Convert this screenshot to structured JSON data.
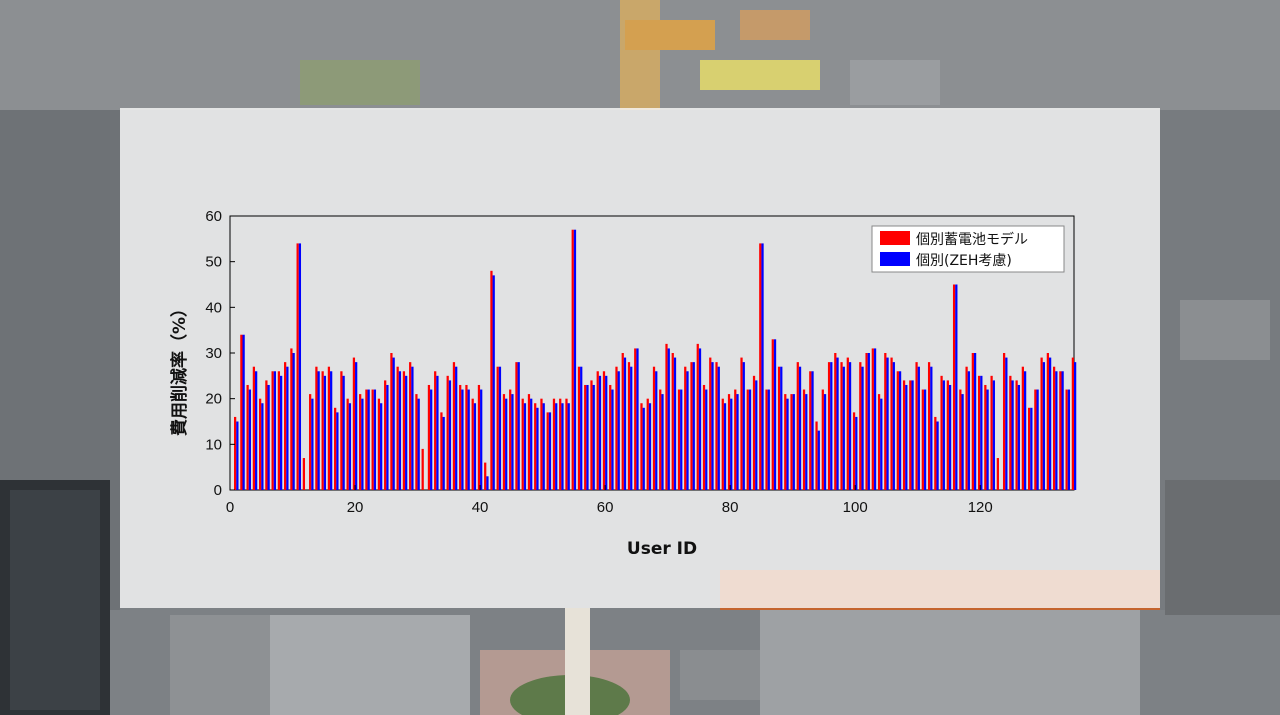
{
  "chart_data": {
    "type": "bar",
    "xlabel": "User ID",
    "ylabel": "費用削減率（%）",
    "ylim": [
      0,
      60
    ],
    "xlim": [
      0,
      135
    ],
    "y_ticks": [
      "0",
      "10",
      "20",
      "30",
      "40",
      "50",
      "60"
    ],
    "x_ticks": [
      "0",
      "20",
      "40",
      "60",
      "80",
      "100",
      "120"
    ],
    "legend_position": "top-right",
    "grid": false,
    "series": [
      {
        "name": "個別蓄電池モデル",
        "color": "#ff0000",
        "values": [
          16,
          34,
          23,
          27,
          20,
          24,
          26,
          26,
          28,
          31,
          54,
          7,
          21,
          27,
          26,
          27,
          18,
          26,
          20,
          29,
          21,
          22,
          22,
          20,
          24,
          30,
          27,
          26,
          28,
          21,
          9,
          23,
          26,
          17,
          25,
          28,
          23,
          23,
          20,
          23,
          6,
          48,
          27,
          21,
          22,
          28,
          20,
          21,
          19,
          20,
          17,
          20,
          20,
          20,
          57,
          27,
          23,
          24,
          26,
          26,
          23,
          27,
          30,
          28,
          31,
          19,
          20,
          27,
          22,
          32,
          30,
          22,
          27,
          28,
          32,
          23,
          29,
          28,
          20,
          21,
          22,
          29,
          22,
          25,
          54,
          22,
          33,
          27,
          21,
          21,
          28,
          22,
          26,
          15,
          22,
          28,
          30,
          28,
          29,
          17,
          28,
          30,
          31,
          21,
          30,
          29,
          26,
          24,
          24,
          28,
          22,
          28,
          16,
          25,
          24,
          45,
          22,
          27,
          30,
          25,
          23,
          25,
          7,
          30,
          25,
          24,
          27,
          18,
          22,
          29,
          30,
          27,
          26,
          22,
          29
        ]
      },
      {
        "name": "個別(ZEH考慮)",
        "color": "#0000ff",
        "values": [
          15,
          34,
          22,
          26,
          19,
          23,
          26,
          25,
          27,
          30,
          54,
          0,
          20,
          26,
          25,
          26,
          17,
          25,
          19,
          28,
          20,
          22,
          22,
          19,
          23,
          29,
          26,
          25,
          27,
          20,
          0,
          22,
          25,
          16,
          24,
          27,
          22,
          22,
          19,
          22,
          3,
          47,
          27,
          20,
          21,
          28,
          19,
          20,
          18,
          19,
          17,
          19,
          19,
          19,
          57,
          27,
          23,
          23,
          25,
          25,
          22,
          26,
          29,
          27,
          31,
          18,
          19,
          26,
          21,
          31,
          29,
          22,
          26,
          28,
          31,
          22,
          28,
          27,
          19,
          20,
          21,
          28,
          22,
          24,
          54,
          22,
          33,
          27,
          20,
          21,
          27,
          21,
          26,
          13,
          21,
          28,
          29,
          27,
          28,
          16,
          27,
          30,
          31,
          20,
          29,
          28,
          26,
          23,
          24,
          27,
          22,
          27,
          15,
          24,
          23,
          45,
          21,
          26,
          30,
          25,
          22,
          24,
          0,
          29,
          24,
          23,
          26,
          18,
          22,
          28,
          29,
          26,
          26,
          22,
          28
        ]
      }
    ]
  }
}
